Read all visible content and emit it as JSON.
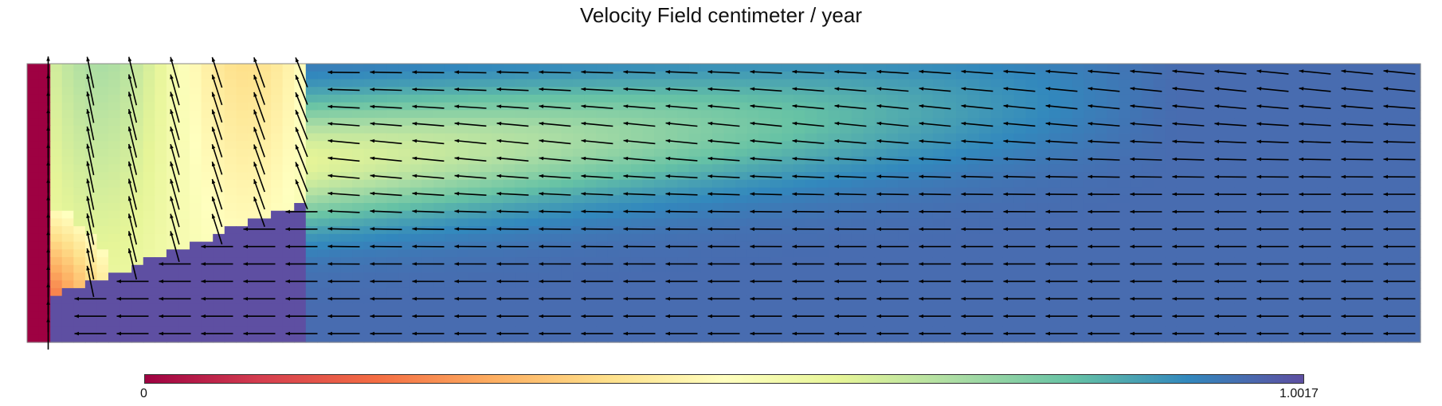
{
  "chart_data": {
    "type": "heatmap",
    "title": "Velocity Field centimeter / year",
    "colorbar": {
      "min_label": "0",
      "max_label": "1.0017",
      "min": 0,
      "max": 1.0017,
      "colormap": [
        "#9e0142",
        "#d53e4f",
        "#f46d43",
        "#fdae61",
        "#fee08b",
        "#ffffbf",
        "#e6f598",
        "#abdda4",
        "#66c2a5",
        "#3288bd",
        "#5e4fa2"
      ]
    },
    "field_description": {
      "domain": "rectangular cross-section",
      "features": [
        "low-velocity region near the left boundary (lower-left corner)",
        "high-velocity uniform flow directed leftward across the lower and right parts",
        "upwelling, near-vertical arrows in the upper-left wedge",
        "transition band with intermediate speeds (yellow to teal) along a diagonal"
      ]
    },
    "grid": false,
    "legend": "colorbar-bottom"
  }
}
